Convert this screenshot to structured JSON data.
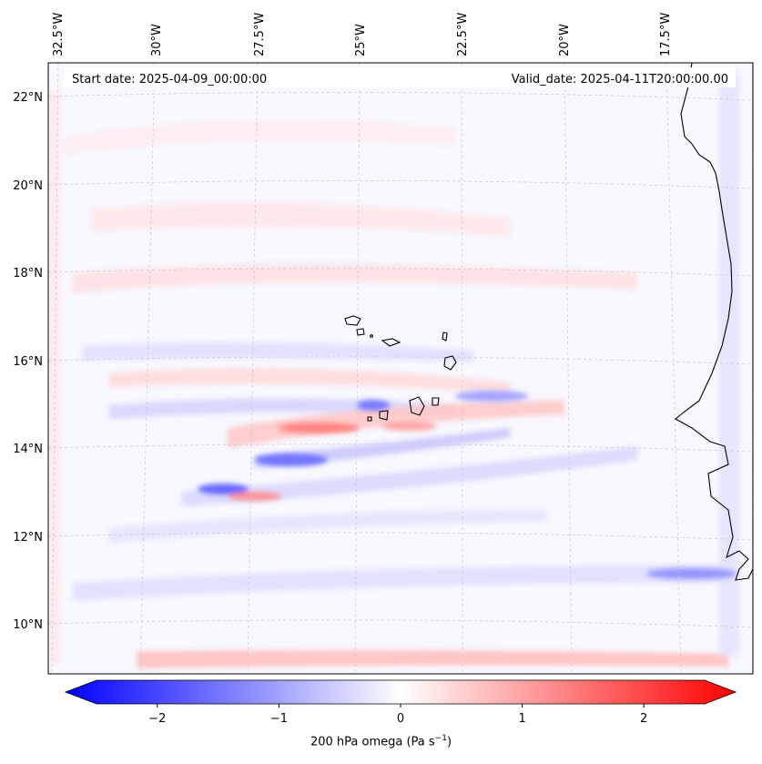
{
  "map": {
    "start_date_label": "Start date: 2025-04-09_00:00:00",
    "valid_date_label": "Valid_date: 2025-04-11T20:00:00.00",
    "lon_labels": [
      "32.5°W",
      "30°W",
      "27.5°W",
      "25°W",
      "22.5°W",
      "20°W",
      "17.5°W"
    ],
    "lat_labels": [
      "22°N",
      "20°N",
      "18°N",
      "16°N",
      "14°N",
      "12°N",
      "10°N"
    ]
  },
  "colorbar": {
    "ticks": [
      "−2",
      "−1",
      "0",
      "1",
      "2"
    ],
    "tick_values": [
      -2,
      -1,
      0,
      1,
      2
    ],
    "range": [
      -2.5,
      2.5
    ],
    "label_main": "200 hPa omega (Pa s",
    "label_exp": "−1",
    "label_close": ")",
    "colors": {
      "negative": "#0000ff",
      "zero": "#ffffff",
      "positive": "#ff0000"
    }
  }
}
